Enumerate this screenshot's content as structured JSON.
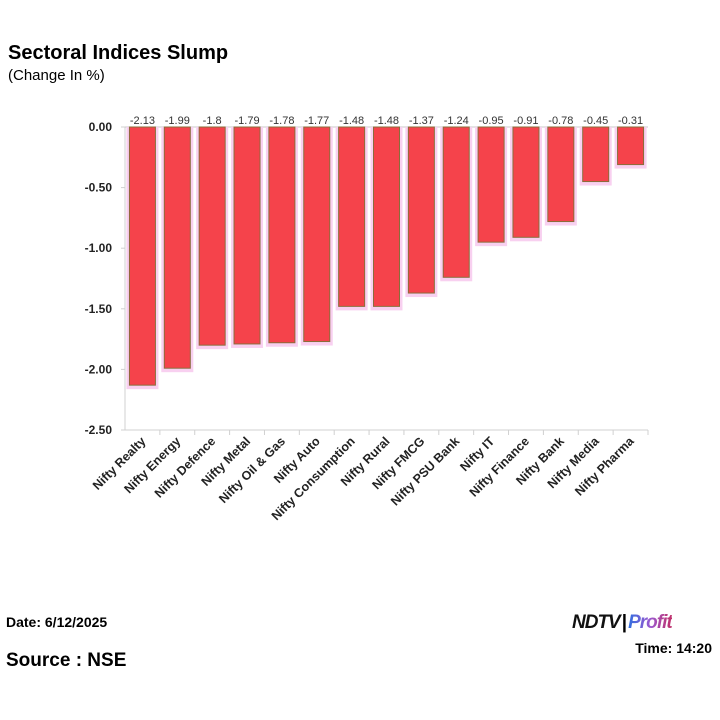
{
  "title": "Sectoral Indices Slump",
  "subtitle": "(Change In %)",
  "footer": {
    "date": "Date: 6/12/2025",
    "time": "Time: 14:20",
    "source": "Source : NSE",
    "logo": "NDTV Profit",
    "logo_parts": {
      "a": "NDTV",
      "b": "Profit"
    }
  },
  "chart_data": {
    "type": "bar",
    "title": "Sectoral Indices Slump",
    "subtitle": "(Change In %)",
    "categories": [
      "Nifty Realty",
      "Nifty Energy",
      "Nifty Defence",
      "Nifty Metal",
      "Nifty Oil & Gas",
      "Nifty Auto",
      "Nifty Consumption",
      "Nifty Rural",
      "Nifty FMCG",
      "Nifty PSU Bank",
      "Nifty IT",
      "Nifty Finance",
      "Nifty Bank",
      "Nifty Media",
      "Nifty Pharma"
    ],
    "values": [
      -2.13,
      -1.99,
      -1.8,
      -1.79,
      -1.78,
      -1.77,
      -1.48,
      -1.48,
      -1.37,
      -1.24,
      -0.95,
      -0.91,
      -0.78,
      -0.45,
      -0.31
    ],
    "data_labels": [
      "-2.13",
      "-1.99",
      "-1.8",
      "-1.79",
      "-1.78",
      "-1.77",
      "-1.48",
      "-1.48",
      "-1.37",
      "-1.24",
      "-0.95",
      "-0.91",
      "-0.78",
      "-0.45",
      "-0.31"
    ],
    "yticks": [
      "0.00",
      "-0.50",
      "-1.00",
      "-1.50",
      "-2.00",
      "-2.50"
    ],
    "ylim": [
      -2.5,
      0
    ],
    "grid": false,
    "colors": {
      "bar": "#f5434b",
      "bar_border": "#8a6d3b",
      "glow": "#f8d0f0"
    }
  }
}
